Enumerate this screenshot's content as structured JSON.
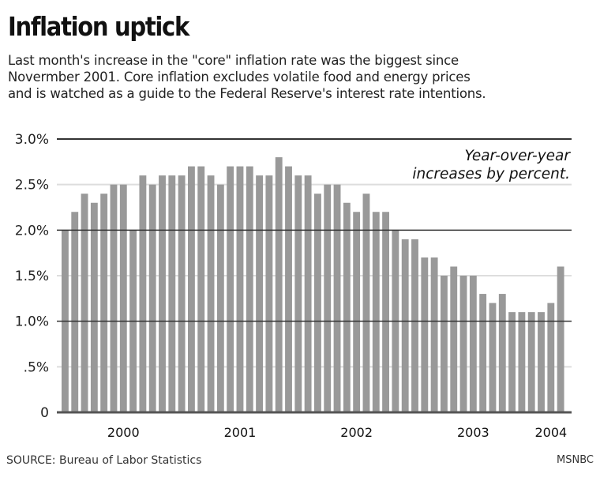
{
  "header": {
    "title": "Inflation uptick",
    "subtitle_lines": [
      "Last month's increase in the \"core\" inflation rate was the biggest since",
      "Novermber 2001. Core inflation excludes volatile food and energy prices",
      "and is watched as a guide to the Federal Reserve's interest rate intentions."
    ]
  },
  "footer": {
    "source": "SOURCE: Bureau of Labor Statistics",
    "credit": "MSNBC"
  },
  "colors": {
    "bar": "#999999",
    "major_grid": "#333333",
    "minor_grid": "#dddddd",
    "axis": "#555555"
  },
  "chart_data": {
    "type": "bar",
    "title": "Inflation uptick",
    "annotation": [
      "Year-over-year",
      "increases by percent."
    ],
    "xlabel": "",
    "ylabel": "",
    "ylim": [
      0,
      3.0
    ],
    "yticks": [
      0,
      0.5,
      1.0,
      1.5,
      2.0,
      2.5,
      3.0
    ],
    "ytick_labels": [
      "0",
      ".5%",
      "1.0%",
      "1.5%",
      "2.0%",
      "2.5%",
      "3.0%"
    ],
    "major_grid_values": [
      1.0,
      2.0,
      3.0
    ],
    "minor_grid_values": [
      0.5,
      1.5,
      2.5
    ],
    "xtick_labels": [
      {
        "label": "2000",
        "bar_index": 6
      },
      {
        "label": "2001",
        "bar_index": 18
      },
      {
        "label": "2002",
        "bar_index": 30
      },
      {
        "label": "2003",
        "bar_index": 42
      },
      {
        "label": "2004",
        "bar_index": 50
      }
    ],
    "values": [
      2.0,
      2.2,
      2.4,
      2.3,
      2.4,
      2.5,
      2.5,
      2.0,
      2.6,
      2.5,
      2.6,
      2.6,
      2.6,
      2.7,
      2.7,
      2.6,
      2.5,
      2.7,
      2.7,
      2.7,
      2.6,
      2.6,
      2.8,
      2.7,
      2.6,
      2.6,
      2.4,
      2.5,
      2.5,
      2.3,
      2.2,
      2.4,
      2.2,
      2.2,
      2.0,
      1.9,
      1.9,
      1.7,
      1.7,
      1.5,
      1.6,
      1.5,
      1.5,
      1.3,
      1.2,
      1.3,
      1.1,
      1.1,
      1.1,
      1.1,
      1.2,
      1.6
    ],
    "grid": true,
    "legend": "none"
  }
}
